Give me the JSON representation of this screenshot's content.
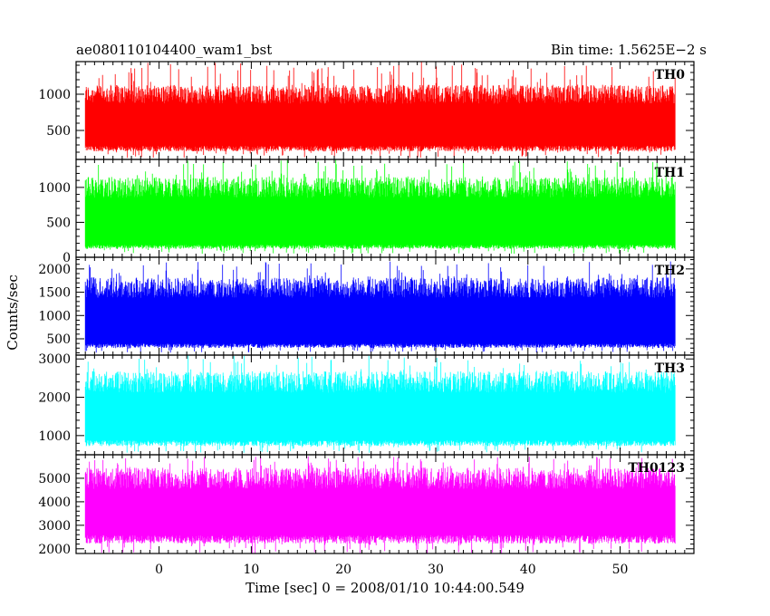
{
  "chart_data": {
    "type": "line",
    "title_left": "ae080110104400_wam1_bst",
    "title_right": "Bin time: 1.5625E−2 s",
    "xlabel": "Time [sec] 0 = 2008/01/10 10:44:00.549",
    "ylabel": "Counts/sec",
    "xlim": [
      -9,
      58
    ],
    "x_data_range": [
      -8,
      56
    ],
    "xticks": [
      0,
      10,
      20,
      30,
      40,
      50
    ],
    "grid": false,
    "panels": [
      {
        "name": "TH0",
        "color": "#ff0000",
        "ylim": [
          100,
          1450
        ],
        "yticks": [
          500,
          1000
        ],
        "typical_range": [
          250,
          1000
        ],
        "extreme_range": [
          120,
          1450
        ]
      },
      {
        "name": "TH1",
        "color": "#00ff00",
        "ylim": [
          0,
          1400
        ],
        "yticks": [
          0,
          500,
          1000
        ],
        "typical_range": [
          150,
          1000
        ],
        "extreme_range": [
          50,
          1400
        ]
      },
      {
        "name": "TH2",
        "color": "#0000ff",
        "ylim": [
          150,
          2250
        ],
        "yticks": [
          500,
          1000,
          1500,
          2000
        ],
        "typical_range": [
          350,
          1600
        ],
        "extreme_range": [
          200,
          2200
        ]
      },
      {
        "name": "TH3",
        "color": "#00ffff",
        "ylim": [
          500,
          3100
        ],
        "yticks": [
          1000,
          2000,
          3000
        ],
        "typical_range": [
          800,
          2400
        ],
        "extreme_range": [
          550,
          3100
        ]
      },
      {
        "name": "TH0123",
        "color": "#ff00ff",
        "ylim": [
          1800,
          6000
        ],
        "yticks": [
          2000,
          3000,
          4000,
          5000
        ],
        "typical_range": [
          2400,
          5000
        ],
        "extreme_range": [
          1800,
          6000
        ]
      }
    ]
  }
}
